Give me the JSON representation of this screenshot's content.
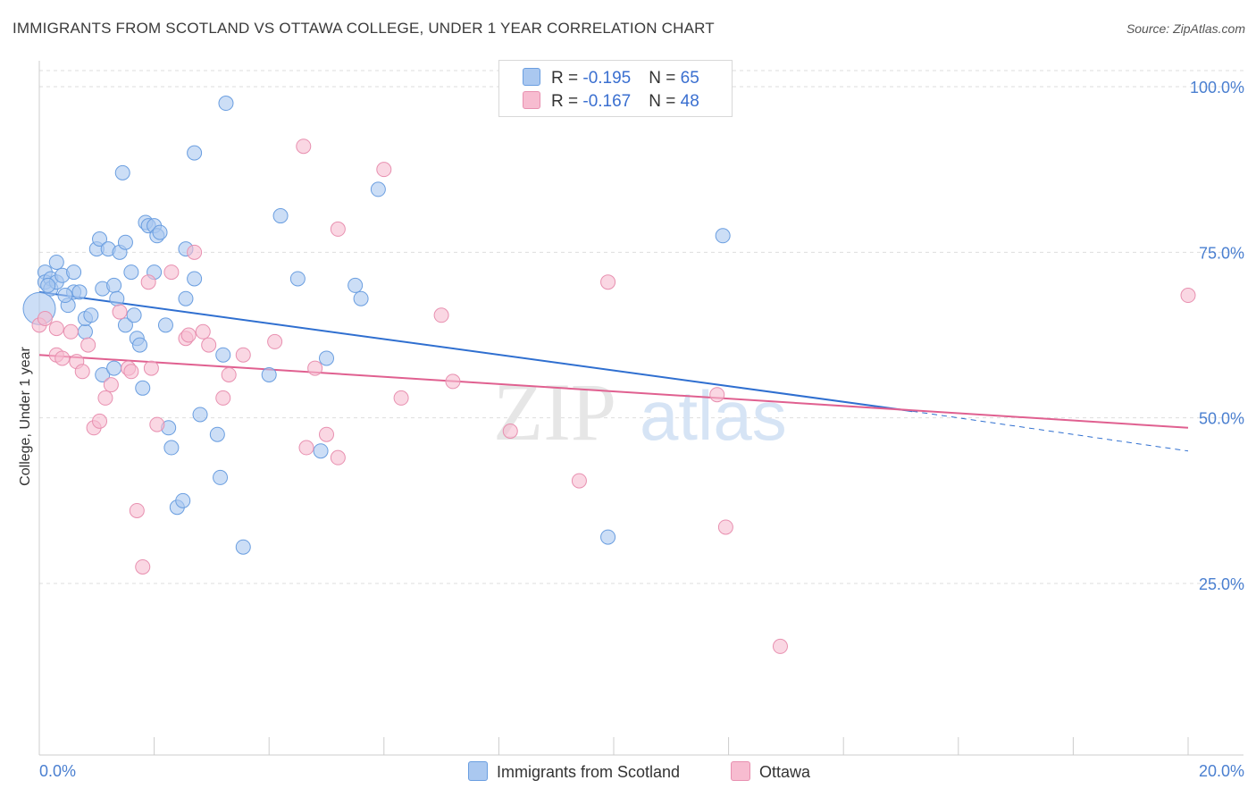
{
  "title": "IMMIGRANTS FROM SCOTLAND VS OTTAWA COLLEGE, UNDER 1 YEAR CORRELATION CHART",
  "source": "Source: ZipAtlas.com",
  "watermark": {
    "zip": "ZIP",
    "atlas": "atlas"
  },
  "legend": {
    "rows": [
      {
        "r_label": "R = ",
        "r_value": "-0.195",
        "n_label": "N = ",
        "n_value": "65"
      },
      {
        "r_label": "R = ",
        "r_value": "-0.167",
        "n_label": "N = ",
        "n_value": "48"
      }
    ]
  },
  "bottom_legend": [
    "Immigrants from Scotland",
    "Ottawa"
  ],
  "colors": {
    "blue_fill": "#aac8f0",
    "blue_stroke": "#6a9ee0",
    "blue_line": "#2f6fd0",
    "pink_fill": "#f7bcd0",
    "pink_stroke": "#e890b0",
    "pink_line": "#e06090",
    "grid": "#dddddd",
    "tick_label": "#4a7fd0"
  },
  "chart_data": {
    "type": "scatter",
    "xlabel": "",
    "ylabel": "College, Under 1 year",
    "x_ticks": [
      "0.0%",
      "20.0%"
    ],
    "y_ticks": [
      "100.0%",
      "75.0%",
      "50.0%",
      "25.0%"
    ],
    "xlim": [
      0,
      20
    ],
    "ylim": [
      4,
      103
    ],
    "grid": true,
    "legend_position": "top-center",
    "series": [
      {
        "name": "Immigrants from Scotland",
        "points": [
          [
            0.0,
            66.5
          ],
          [
            0.1,
            72
          ],
          [
            0.1,
            70.5
          ],
          [
            0.2,
            71
          ],
          [
            0.2,
            69.5
          ],
          [
            0.3,
            73.5
          ],
          [
            0.3,
            70.5
          ],
          [
            0.4,
            71.5
          ],
          [
            0.5,
            67
          ],
          [
            0.6,
            72
          ],
          [
            0.6,
            69
          ],
          [
            0.7,
            69
          ],
          [
            0.8,
            63
          ],
          [
            0.8,
            65
          ],
          [
            0.9,
            65.5
          ],
          [
            1.0,
            75.5
          ],
          [
            1.05,
            77
          ],
          [
            1.1,
            69.5
          ],
          [
            1.1,
            56.5
          ],
          [
            1.2,
            75.5
          ],
          [
            1.3,
            70
          ],
          [
            1.3,
            57.5
          ],
          [
            1.35,
            68
          ],
          [
            1.4,
            75
          ],
          [
            1.45,
            87
          ],
          [
            1.5,
            76.5
          ],
          [
            1.5,
            64
          ],
          [
            1.6,
            72
          ],
          [
            1.65,
            65.5
          ],
          [
            1.7,
            62
          ],
          [
            1.75,
            61
          ],
          [
            1.8,
            54.5
          ],
          [
            1.85,
            79.5
          ],
          [
            1.9,
            79
          ],
          [
            2.0,
            79
          ],
          [
            2.0,
            72
          ],
          [
            2.05,
            77.5
          ],
          [
            2.1,
            78
          ],
          [
            2.2,
            64
          ],
          [
            2.25,
            48.5
          ],
          [
            2.3,
            45.5
          ],
          [
            2.4,
            36.5
          ],
          [
            2.5,
            37.5
          ],
          [
            2.55,
            75.5
          ],
          [
            2.55,
            68
          ],
          [
            2.7,
            71
          ],
          [
            2.7,
            90
          ],
          [
            2.8,
            50.5
          ],
          [
            3.1,
            47.5
          ],
          [
            3.15,
            41
          ],
          [
            3.2,
            59.5
          ],
          [
            3.25,
            97.5
          ],
          [
            3.55,
            30.5
          ],
          [
            4.0,
            56.5
          ],
          [
            4.2,
            80.5
          ],
          [
            4.5,
            71
          ],
          [
            4.9,
            45
          ],
          [
            5.0,
            59
          ],
          [
            5.5,
            70
          ],
          [
            5.6,
            68
          ],
          [
            5.9,
            84.5
          ],
          [
            9.9,
            32
          ],
          [
            11.9,
            77.5
          ],
          [
            0.15,
            70
          ],
          [
            0.45,
            68.5
          ]
        ]
      },
      {
        "name": "Ottawa",
        "points": [
          [
            0.0,
            64
          ],
          [
            0.1,
            65
          ],
          [
            0.3,
            63.5
          ],
          [
            0.3,
            59.5
          ],
          [
            0.4,
            59
          ],
          [
            0.55,
            63
          ],
          [
            0.65,
            58.5
          ],
          [
            0.75,
            57
          ],
          [
            0.85,
            61
          ],
          [
            0.95,
            48.5
          ],
          [
            1.05,
            49.5
          ],
          [
            1.15,
            53
          ],
          [
            1.25,
            55
          ],
          [
            1.4,
            66
          ],
          [
            1.55,
            57.5
          ],
          [
            1.6,
            57
          ],
          [
            1.7,
            36
          ],
          [
            1.8,
            27.5
          ],
          [
            1.9,
            70.5
          ],
          [
            1.95,
            57.5
          ],
          [
            2.05,
            49
          ],
          [
            2.3,
            72
          ],
          [
            2.55,
            62
          ],
          [
            2.6,
            62.5
          ],
          [
            2.7,
            75
          ],
          [
            2.85,
            63
          ],
          [
            2.95,
            61
          ],
          [
            3.2,
            53
          ],
          [
            3.3,
            56.5
          ],
          [
            3.55,
            59.5
          ],
          [
            4.1,
            61.5
          ],
          [
            4.6,
            91
          ],
          [
            4.65,
            45.5
          ],
          [
            4.8,
            57.5
          ],
          [
            5.0,
            47.5
          ],
          [
            5.2,
            44
          ],
          [
            5.2,
            78.5
          ],
          [
            6.0,
            87.5
          ],
          [
            6.3,
            53
          ],
          [
            7.0,
            65.5
          ],
          [
            7.2,
            55.5
          ],
          [
            8.2,
            48
          ],
          [
            9.4,
            40.5
          ],
          [
            9.9,
            70.5
          ],
          [
            11.8,
            53.5
          ],
          [
            11.95,
            33.5
          ],
          [
            12.9,
            15.5
          ],
          [
            20.0,
            68.5
          ]
        ]
      }
    ],
    "trend_lines": [
      {
        "name": "Immigrants from Scotland",
        "x": [
          0,
          15.2
        ],
        "y": [
          69,
          51
        ],
        "dashed_extension": {
          "x": [
            15.2,
            20
          ],
          "y": [
            51,
            45
          ]
        }
      },
      {
        "name": "Ottawa",
        "x": [
          0,
          20
        ],
        "y": [
          59.5,
          48.5
        ]
      }
    ]
  }
}
